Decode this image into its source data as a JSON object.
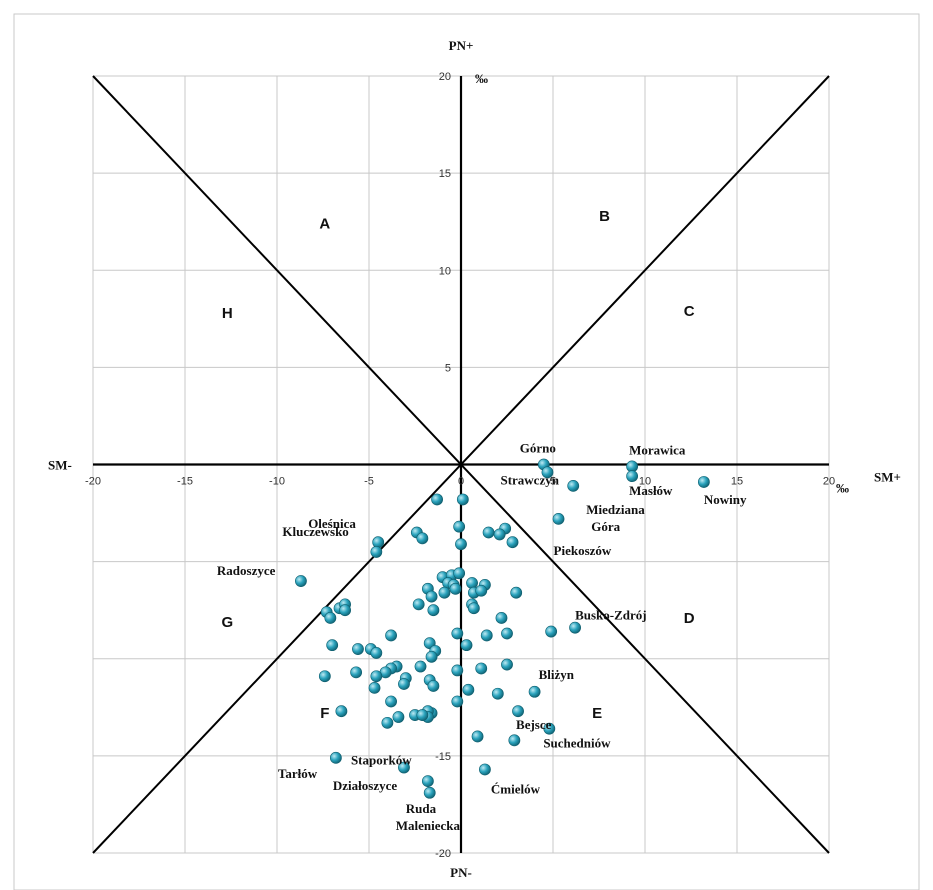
{
  "chart_data": {
    "type": "scatter",
    "axis_labels": {
      "x_positive": "SM+",
      "x_negative": "SM-",
      "y_positive": "PN+",
      "y_negative": "PN-"
    },
    "units": {
      "x": "‰",
      "y": "‰"
    },
    "xlim": [
      -20,
      20
    ],
    "ylim": [
      -20,
      20
    ],
    "x_ticks": [
      -20,
      -15,
      -10,
      -5,
      0,
      5,
      10,
      15,
      20
    ],
    "y_ticks": [
      20,
      15,
      10,
      5,
      0,
      -5,
      -10,
      -15,
      -20
    ],
    "x_tick_labels": [
      "-20",
      "-15",
      "-10",
      "-5",
      "0",
      "5",
      "10",
      "15",
      "20"
    ],
    "y_tick_labels": [
      "20",
      "15",
      "10",
      "5",
      "",
      "",
      "",
      "-15",
      "-20"
    ],
    "grid": true,
    "sector_labels": [
      "A",
      "B",
      "C",
      "D",
      "E",
      "F",
      "G",
      "H"
    ],
    "point_color": "#2aa3bd",
    "labeled_points": [
      {
        "name": "Górno",
        "x": 4.5,
        "y": 0.0
      },
      {
        "name": "Strawczyn",
        "x": 4.7,
        "y": -0.4
      },
      {
        "name": "Morawica",
        "x": 9.3,
        "y": -0.1
      },
      {
        "name": "Masłów",
        "x": 9.3,
        "y": -0.6
      },
      {
        "name": "Nowiny",
        "x": 13.2,
        "y": -0.9
      },
      {
        "name": "Miedziana Góra",
        "x": 6.1,
        "y": -1.1
      },
      {
        "name": "Piekoszów",
        "x": 5.3,
        "y": -2.8
      },
      {
        "name": "Oleśnica",
        "x": -4.5,
        "y": -4.0
      },
      {
        "name": "Kluczewsko",
        "x": -4.6,
        "y": -4.5
      },
      {
        "name": "Radoszyce",
        "x": -8.7,
        "y": -6.0
      },
      {
        "name": "Busko-Zdrój",
        "x": 6.2,
        "y": -8.4
      },
      {
        "name": "Bliżyn",
        "x": 4.0,
        "y": -11.7
      },
      {
        "name": "Bejsce",
        "x": 3.1,
        "y": -12.7
      },
      {
        "name": "Suchedniów",
        "x": 4.8,
        "y": -13.6
      },
      {
        "name": "Staporków",
        "x": -3.1,
        "y": -15.6
      },
      {
        "name": "Tarłów",
        "x": -6.8,
        "y": -15.1
      },
      {
        "name": "Ćmielów",
        "x": 1.3,
        "y": -15.7
      },
      {
        "name": "Działoszyce",
        "x": -1.8,
        "y": -16.3
      },
      {
        "name": "Ruda Maleniecka",
        "x": -1.7,
        "y": -16.9
      }
    ],
    "other_points": [
      [
        -1.3,
        -1.8
      ],
      [
        0.1,
        -1.8
      ],
      [
        -0.1,
        -3.2
      ],
      [
        1.5,
        -3.5
      ],
      [
        2.4,
        -3.3
      ],
      [
        2.1,
        -3.6
      ],
      [
        -2.4,
        -3.5
      ],
      [
        -2.1,
        -3.8
      ],
      [
        2.8,
        -4.0
      ],
      [
        0.0,
        -4.1
      ],
      [
        -1.0,
        -5.8
      ],
      [
        -0.5,
        -5.7
      ],
      [
        -0.1,
        -5.6
      ],
      [
        -0.7,
        -6.1
      ],
      [
        -0.4,
        -6.2
      ],
      [
        0.6,
        -6.1
      ],
      [
        1.3,
        -6.2
      ],
      [
        -1.8,
        -6.4
      ],
      [
        -1.6,
        -6.8
      ],
      [
        -0.9,
        -6.6
      ],
      [
        -0.3,
        -6.4
      ],
      [
        0.7,
        -6.6
      ],
      [
        1.1,
        -6.5
      ],
      [
        3.0,
        -6.6
      ],
      [
        -2.3,
        -7.2
      ],
      [
        0.6,
        -7.2
      ],
      [
        -1.5,
        -7.5
      ],
      [
        0.7,
        -7.4
      ],
      [
        -7.3,
        -7.6
      ],
      [
        -7.1,
        -7.9
      ],
      [
        -6.6,
        -7.4
      ],
      [
        -6.3,
        -7.2
      ],
      [
        -6.3,
        -7.5
      ],
      [
        2.2,
        -7.9
      ],
      [
        -0.2,
        -8.7
      ],
      [
        1.4,
        -8.8
      ],
      [
        2.5,
        -8.7
      ],
      [
        4.9,
        -8.6
      ],
      [
        -7.0,
        -9.3
      ],
      [
        -5.6,
        -9.5
      ],
      [
        -1.7,
        -9.2
      ],
      [
        0.3,
        -9.3
      ],
      [
        -3.8,
        -8.8
      ],
      [
        -4.9,
        -9.5
      ],
      [
        -4.6,
        -9.7
      ],
      [
        -1.4,
        -9.6
      ],
      [
        -1.6,
        -9.9
      ],
      [
        -2.2,
        -10.4
      ],
      [
        -0.2,
        -10.6
      ],
      [
        1.1,
        -10.5
      ],
      [
        2.5,
        -10.3
      ],
      [
        -3.5,
        -10.4
      ],
      [
        -3.8,
        -10.5
      ],
      [
        -4.1,
        -10.7
      ],
      [
        -4.6,
        -10.9
      ],
      [
        -5.7,
        -10.7
      ],
      [
        -7.4,
        -10.9
      ],
      [
        -3.0,
        -11.0
      ],
      [
        -1.7,
        -11.1
      ],
      [
        -3.1,
        -11.3
      ],
      [
        -4.7,
        -11.5
      ],
      [
        -1.5,
        -11.4
      ],
      [
        0.4,
        -11.6
      ],
      [
        2.0,
        -11.8
      ],
      [
        -3.8,
        -12.2
      ],
      [
        -0.2,
        -12.2
      ],
      [
        -1.6,
        -12.8
      ],
      [
        -1.8,
        -12.7
      ],
      [
        -2.5,
        -12.9
      ],
      [
        -1.8,
        -13.0
      ],
      [
        -2.1,
        -12.9
      ],
      [
        -3.4,
        -13.0
      ],
      [
        -4.0,
        -13.3
      ],
      [
        -6.5,
        -12.7
      ],
      [
        0.9,
        -14.0
      ],
      [
        2.9,
        -14.2
      ]
    ]
  }
}
